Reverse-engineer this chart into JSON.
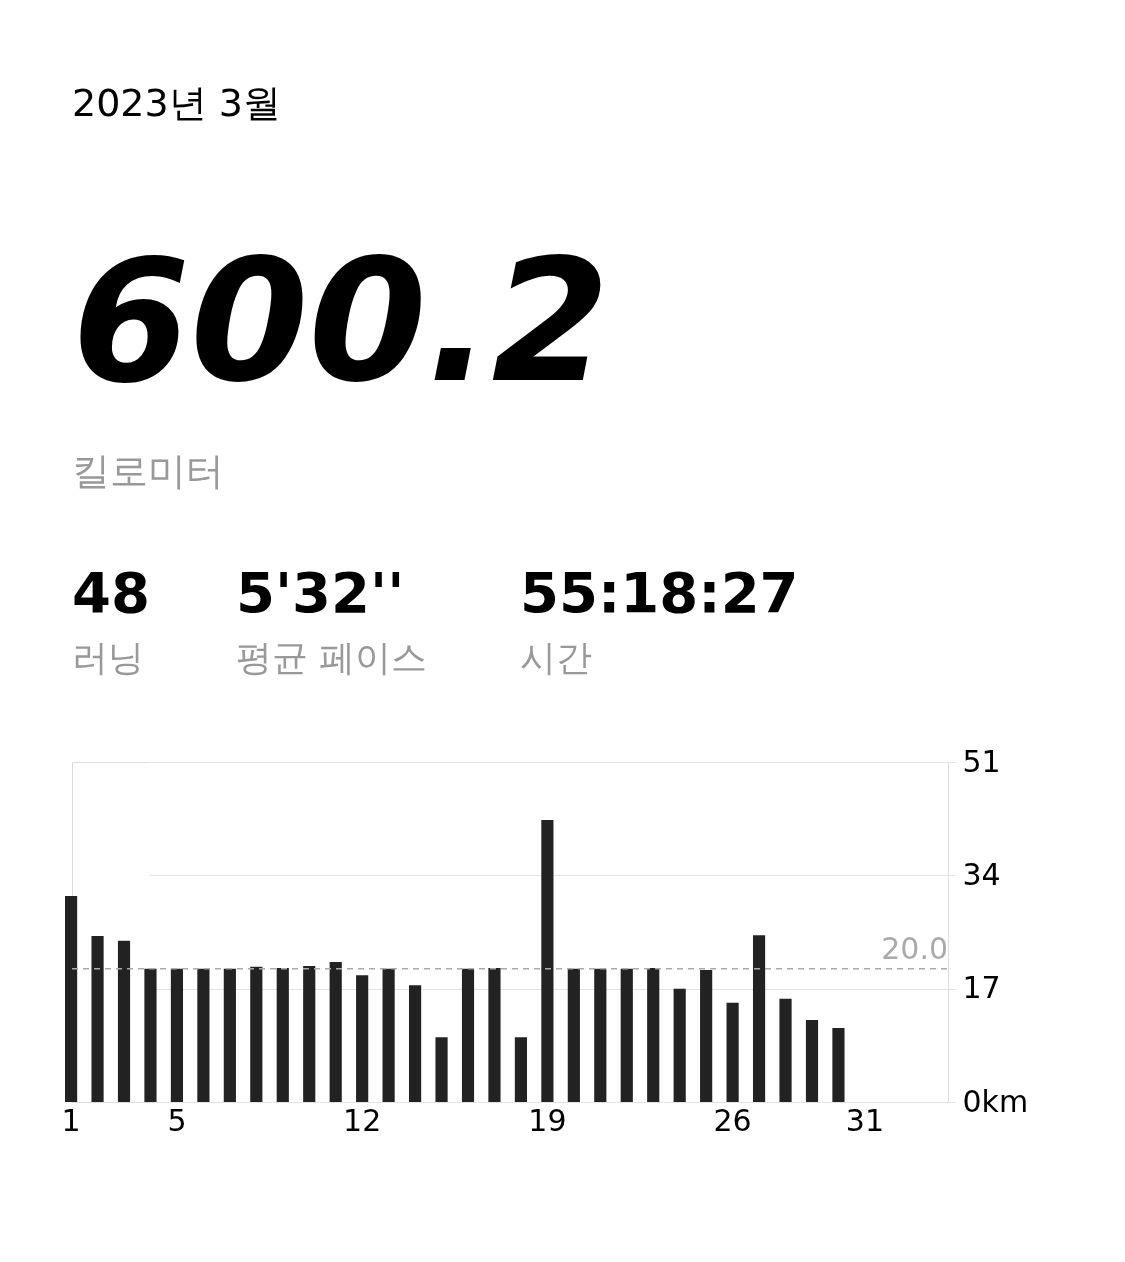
{
  "chart_data": {
    "type": "bar",
    "title": "2023년 3월",
    "annotations": [
      "600.2",
      "킬로미터",
      "48",
      "러닝",
      "5'32''",
      "평균 페이스",
      "55:18:27",
      "시간"
    ],
    "categories": [
      "1",
      null,
      null,
      null,
      "5",
      null,
      null,
      null,
      null,
      null,
      null,
      "12",
      null,
      null,
      null,
      null,
      null,
      null,
      "19",
      null,
      null,
      null,
      null,
      null,
      null,
      "26",
      null,
      null,
      null,
      null,
      "31"
    ],
    "values": [
      30.9,
      24.9,
      24.2,
      20.0,
      20.0,
      20.0,
      20.0,
      20.3,
      20.1,
      20.4,
      21.0,
      19.0,
      20.0,
      17.5,
      9.7,
      20.0,
      20.1,
      9.7,
      42.3,
      20.0,
      20.0,
      20.0,
      20.1,
      17.0,
      19.8,
      14.9,
      25.0,
      15.5,
      12.3,
      11.1,
      null
    ],
    "color": "#222222",
    "ylim": [
      0,
      51
    ],
    "yticks": [
      {
        "value": 0,
        "label": "0km"
      },
      17,
      34,
      51
    ],
    "grid": "y",
    "ref_lines": [
      {
        "axis": "y",
        "value": 20.0,
        "label": "20.0",
        "color": "#aaaaaa",
        "line_style": "dashed"
      }
    ]
  }
}
